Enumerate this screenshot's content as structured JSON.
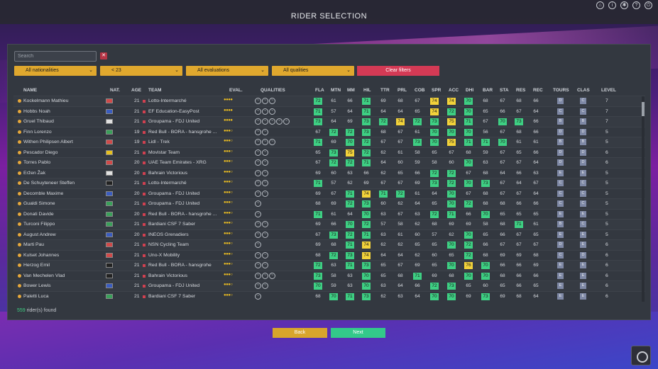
{
  "header": {
    "title": "RIDER SELECTION",
    "icons": [
      "home-icon",
      "info-icon",
      "settings-icon",
      "help-icon",
      "power-icon"
    ]
  },
  "search": {
    "placeholder": "Search",
    "value": ""
  },
  "filters": {
    "nationality": "All nationalities",
    "age": "< 23",
    "evaluations": "All evaluations",
    "qualities": "All qualities",
    "clear": "Clear filters"
  },
  "columns": [
    "NAME",
    "NAT.",
    "AGE",
    "TEAM",
    "EVAL.",
    "QUALITIES",
    "FLA",
    "MTN",
    "MM",
    "HIL",
    "TTR",
    "PRL",
    "COB",
    "SPR",
    "ACC",
    "DHI",
    "BAR",
    "STA",
    "RES",
    "REC",
    "TOURS",
    "CLAS",
    "LEVEL"
  ],
  "rows": [
    {
      "name": "Kockelmann Mathieu",
      "age": "21",
      "team": "Lotto-Intermarché",
      "stars": "●●●●",
      "q": 3,
      "stats": [
        "72",
        "61",
        "66",
        "71",
        "69",
        "68",
        "67",
        "74",
        "74",
        "70",
        "68",
        "67",
        "68",
        "66"
      ],
      "hl": [
        "g",
        "",
        "",
        "g",
        "",
        "",
        "",
        "y",
        "y",
        "g",
        "",
        "",
        "",
        ""
      ],
      "tours": "D",
      "clas": "C",
      "level": "7"
    },
    {
      "name": "Hobbs Noah",
      "age": "21",
      "team": "EF Education-EasyPost",
      "stars": "●●●●",
      "q": 3,
      "stats": [
        "71",
        "57",
        "64",
        "71",
        "64",
        "64",
        "65",
        "74",
        "72",
        "70",
        "65",
        "66",
        "67",
        "64"
      ],
      "hl": [
        "g",
        "",
        "",
        "g",
        "",
        "",
        "",
        "y",
        "g",
        "g",
        "",
        "",
        "",
        ""
      ],
      "tours": "C",
      "clas": "C",
      "level": "7"
    },
    {
      "name": "Gruel Thibaud",
      "age": "21",
      "team": "Groupama - FDJ United",
      "stars": "●●●●",
      "q": 5,
      "stats": [
        "73",
        "64",
        "69",
        "73",
        "72",
        "74",
        "72",
        "73",
        "75",
        "71",
        "67",
        "70",
        "73",
        "66"
      ],
      "hl": [
        "g",
        "",
        "",
        "g",
        "g",
        "y",
        "g",
        "g",
        "y",
        "g",
        "",
        "g",
        "g",
        ""
      ],
      "tours": "B",
      "clas": "B",
      "level": "7"
    },
    {
      "name": "Finn Lorenzo",
      "age": "19",
      "team": "Red Bull - BORA - hansgrohe ...",
      "stars": "●●●○",
      "q": 2,
      "stats": [
        "67",
        "72",
        "72",
        "73",
        "68",
        "67",
        "61",
        "70",
        "70",
        "70",
        "56",
        "67",
        "68",
        "66"
      ],
      "hl": [
        "",
        "g",
        "g",
        "g",
        "",
        "",
        "",
        "g",
        "g",
        "g",
        "",
        "",
        "",
        ""
      ],
      "tours": "D",
      "clas": "D",
      "level": "5"
    },
    {
      "name": "Withen Philipsen Albert",
      "age": "19",
      "team": "Lidl - Trek",
      "stars": "●●●○",
      "q": 3,
      "stats": [
        "71",
        "69",
        "70",
        "72",
        "67",
        "67",
        "73",
        "70",
        "75",
        "71",
        "71",
        "70",
        "61",
        "61"
      ],
      "hl": [
        "g",
        "",
        "g",
        "g",
        "",
        "",
        "g",
        "g",
        "y",
        "g",
        "g",
        "g",
        "",
        ""
      ],
      "tours": "B",
      "clas": "B",
      "level": "5"
    },
    {
      "name": "Pescador Diego",
      "age": "21",
      "team": "Movistar Team",
      "stars": "●●●○",
      "q": 2,
      "stats": [
        "65",
        "73",
        "75",
        "72",
        "62",
        "61",
        "58",
        "65",
        "67",
        "68",
        "59",
        "67",
        "65",
        "66"
      ],
      "hl": [
        "",
        "g",
        "y",
        "g",
        "",
        "",
        "",
        "",
        "",
        "",
        "",
        "",
        "",
        ""
      ],
      "tours": "D",
      "clas": "D",
      "level": "6"
    },
    {
      "name": "Torres Pablo",
      "age": "20",
      "team": "UAE Team Emirates - XRG",
      "stars": "●●●○",
      "q": 2,
      "stats": [
        "67",
        "72",
        "72",
        "71",
        "64",
        "60",
        "59",
        "58",
        "60",
        "70",
        "63",
        "67",
        "67",
        "64"
      ],
      "hl": [
        "",
        "g",
        "g",
        "g",
        "",
        "",
        "",
        "",
        "",
        "g",
        "",
        "",
        "",
        ""
      ],
      "tours": "D",
      "clas": "D",
      "level": "6"
    },
    {
      "name": "Eržen Žak",
      "age": "20",
      "team": "Bahrain Victorious",
      "stars": "●●●○",
      "q": 2,
      "stats": [
        "69",
        "60",
        "63",
        "66",
        "62",
        "65",
        "66",
        "72",
        "72",
        "67",
        "68",
        "64",
        "66",
        "63"
      ],
      "hl": [
        "",
        "",
        "",
        "",
        "",
        "",
        "",
        "g",
        "g",
        "",
        "",
        "",
        "",
        ""
      ],
      "tours": "E",
      "clas": "E",
      "level": "5"
    },
    {
      "name": "De Schuyteneer Steffen",
      "age": "21",
      "team": "Lotto-Intermarché",
      "stars": "●●●○",
      "q": 2,
      "stats": [
        "71",
        "57",
        "62",
        "69",
        "67",
        "67",
        "69",
        "73",
        "72",
        "70",
        "73",
        "67",
        "64",
        "67"
      ],
      "hl": [
        "g",
        "",
        "",
        "",
        "",
        "",
        "",
        "g",
        "g",
        "g",
        "g",
        "",
        "",
        ""
      ],
      "tours": "C",
      "clas": "C",
      "level": "5"
    },
    {
      "name": "Decomble Maxime",
      "age": "20",
      "team": "Groupama - FDJ United",
      "stars": "●●●○",
      "q": 2,
      "stats": [
        "69",
        "67",
        "71",
        "74",
        "71",
        "72",
        "61",
        "64",
        "70",
        "67",
        "68",
        "67",
        "67",
        "64"
      ],
      "hl": [
        "",
        "",
        "g",
        "y",
        "g",
        "g",
        "",
        "",
        "g",
        "",
        "",
        "",
        "",
        ""
      ],
      "tours": "C",
      "clas": "C",
      "level": "5"
    },
    {
      "name": "Gualdi Simone",
      "age": "21",
      "team": "Groupama - FDJ United",
      "stars": "●●●○",
      "q": 1,
      "stats": [
        "68",
        "69",
        "72",
        "73",
        "60",
        "62",
        "64",
        "65",
        "70",
        "72",
        "68",
        "68",
        "66",
        "66"
      ],
      "hl": [
        "",
        "",
        "g",
        "g",
        "",
        "",
        "",
        "",
        "g",
        "g",
        "",
        "",
        "",
        ""
      ],
      "tours": "C",
      "clas": "C",
      "level": "5"
    },
    {
      "name": "Donati Davide",
      "age": "20",
      "team": "Red Bull - BORA - hansgrohe ...",
      "stars": "●●●○",
      "q": 1,
      "stats": [
        "71",
        "61",
        "64",
        "70",
        "63",
        "67",
        "63",
        "72",
        "71",
        "66",
        "70",
        "65",
        "65",
        "65"
      ],
      "hl": [
        "g",
        "",
        "",
        "g",
        "",
        "",
        "",
        "g",
        "g",
        "",
        "g",
        "",
        "",
        ""
      ],
      "tours": "E",
      "clas": "E",
      "level": "5"
    },
    {
      "name": "Turconi Filippo",
      "age": "21",
      "team": "Bardiani CSF 7 Saber",
      "stars": "●●●○",
      "q": 2,
      "stats": [
        "69",
        "66",
        "70",
        "72",
        "57",
        "58",
        "62",
        "68",
        "69",
        "69",
        "58",
        "68",
        "71",
        "61"
      ],
      "hl": [
        "",
        "",
        "g",
        "g",
        "",
        "",
        "",
        "",
        "",
        "",
        "",
        "",
        "g",
        ""
      ],
      "tours": "B",
      "clas": "C",
      "level": "5"
    },
    {
      "name": "August Andrew",
      "age": "20",
      "team": "INEOS Grenadiers",
      "stars": "●●●○",
      "q": 2,
      "stats": [
        "67",
        "73",
        "72",
        "71",
        "63",
        "61",
        "60",
        "57",
        "62",
        "70",
        "65",
        "66",
        "67",
        "65"
      ],
      "hl": [
        "",
        "g",
        "g",
        "g",
        "",
        "",
        "",
        "",
        "",
        "g",
        "",
        "",
        "",
        ""
      ],
      "tours": "E",
      "clas": "E",
      "level": "5"
    },
    {
      "name": "Marti Pau",
      "age": "21",
      "team": "NSN Cycling Team",
      "stars": "●●●○",
      "q": 1,
      "stats": [
        "69",
        "68",
        "71",
        "74",
        "62",
        "62",
        "65",
        "65",
        "70",
        "72",
        "66",
        "67",
        "67",
        "67"
      ],
      "hl": [
        "",
        "",
        "g",
        "y",
        "",
        "",
        "",
        "",
        "g",
        "g",
        "",
        "",
        "",
        ""
      ],
      "tours": "D",
      "clas": "E",
      "level": "6"
    },
    {
      "name": "Kulset Johannes",
      "age": "21",
      "team": "Uno-X Mobility",
      "stars": "●●●○",
      "q": 2,
      "stats": [
        "68",
        "72",
        "73",
        "74",
        "64",
        "64",
        "62",
        "60",
        "65",
        "72",
        "68",
        "69",
        "69",
        "68"
      ],
      "hl": [
        "",
        "g",
        "g",
        "y",
        "",
        "",
        "",
        "",
        "",
        "g",
        "",
        "",
        "",
        ""
      ],
      "tours": "C",
      "clas": "D",
      "level": "6"
    },
    {
      "name": "Herzog Emil",
      "age": "21",
      "team": "Red Bull - BORA - hansgrohe",
      "stars": "●●●○",
      "q": 2,
      "stats": [
        "72",
        "63",
        "71",
        "73",
        "65",
        "67",
        "69",
        "65",
        "70",
        "76",
        "70",
        "66",
        "66",
        "69"
      ],
      "hl": [
        "g",
        "",
        "g",
        "g",
        "",
        "",
        "",
        "",
        "g",
        "y",
        "g",
        "",
        "",
        ""
      ],
      "tours": "E",
      "clas": "E",
      "level": "6"
    },
    {
      "name": "Van Mechelen Vlad",
      "age": "21",
      "team": "Bahrain Victorious",
      "stars": "●●●○",
      "q": 3,
      "stats": [
        "73",
        "58",
        "63",
        "70",
        "65",
        "68",
        "71",
        "69",
        "68",
        "70",
        "70",
        "68",
        "66",
        "66"
      ],
      "hl": [
        "g",
        "",
        "",
        "g",
        "",
        "",
        "g",
        "",
        "",
        "g",
        "g",
        "",
        "",
        ""
      ],
      "tours": "E",
      "clas": "E",
      "level": "6"
    },
    {
      "name": "Bower Lewis",
      "age": "21",
      "team": "Groupama - FDJ United",
      "stars": "●●●○",
      "q": 2,
      "stats": [
        "70",
        "59",
        "63",
        "70",
        "63",
        "64",
        "66",
        "72",
        "73",
        "65",
        "60",
        "65",
        "66",
        "65"
      ],
      "hl": [
        "g",
        "",
        "",
        "g",
        "",
        "",
        "",
        "g",
        "g",
        "",
        "",
        "",
        "",
        ""
      ],
      "tours": "E",
      "clas": "E",
      "level": "6"
    },
    {
      "name": "Paletti Luca",
      "age": "21",
      "team": "Bardiani CSF 7 Saber",
      "stars": "●●●○",
      "q": 1,
      "stats": [
        "68",
        "70",
        "71",
        "73",
        "62",
        "63",
        "64",
        "70",
        "70",
        "69",
        "73",
        "69",
        "68",
        "64"
      ],
      "hl": [
        "",
        "g",
        "g",
        "g",
        "",
        "",
        "",
        "g",
        "g",
        "",
        "g",
        "",
        "",
        ""
      ],
      "tours": "E",
      "clas": "E",
      "level": "6"
    }
  ],
  "footer": {
    "count": "559",
    "count_label": " rider(s) found"
  },
  "buttons": {
    "back": "Back",
    "next": "Next"
  },
  "colors": {
    "good": "#3ecf83",
    "excellent": "#f2d23a",
    "accent": "#e0a82e",
    "danger": "#d43a55"
  }
}
